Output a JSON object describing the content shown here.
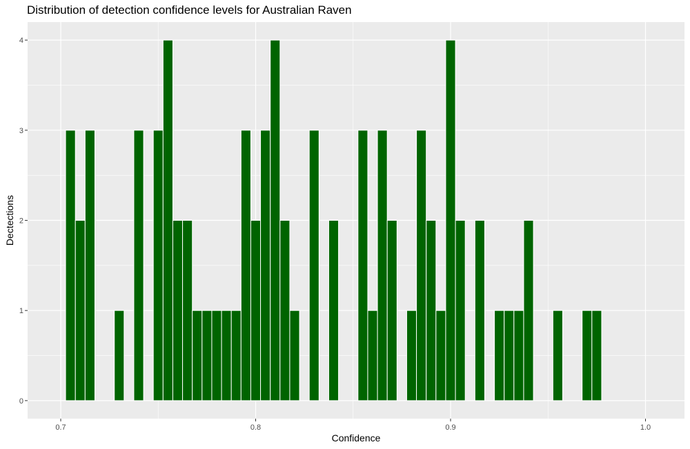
{
  "chart_data": {
    "type": "bar",
    "title": "Distribution of detection confidence levels for Australian Raven",
    "xlabel": "Confidence",
    "ylabel": "Dectections",
    "xlim": [
      0.683,
      1.02
    ],
    "ylim": [
      -0.2,
      4.2
    ],
    "x_ticks": [
      0.7,
      0.8,
      0.9,
      1.0
    ],
    "x_tick_labels": [
      "0.7",
      "0.8",
      "0.9",
      "1.0"
    ],
    "y_ticks": [
      0,
      1,
      2,
      3,
      4
    ],
    "y_tick_labels": [
      "0",
      "1",
      "2",
      "3",
      "4"
    ],
    "bin_width": 0.005,
    "bar_color": "#006400",
    "panel_color": "#ebebeb",
    "grid": true,
    "bins": [
      0.705,
      0.71,
      0.715,
      0.72,
      0.725,
      0.73,
      0.735,
      0.74,
      0.745,
      0.75,
      0.755,
      0.76,
      0.765,
      0.77,
      0.775,
      0.78,
      0.785,
      0.79,
      0.795,
      0.8,
      0.805,
      0.81,
      0.815,
      0.82,
      0.825,
      0.83,
      0.835,
      0.84,
      0.845,
      0.85,
      0.855,
      0.86,
      0.865,
      0.87,
      0.875,
      0.88,
      0.885,
      0.89,
      0.895,
      0.9,
      0.905,
      0.91,
      0.915,
      0.92,
      0.925,
      0.93,
      0.935,
      0.94,
      0.945,
      0.95,
      0.955,
      0.96,
      0.965,
      0.97,
      0.975
    ],
    "counts": [
      3,
      2,
      3,
      0,
      0,
      1,
      0,
      3,
      0,
      3,
      4,
      2,
      2,
      1,
      1,
      1,
      1,
      1,
      3,
      2,
      3,
      4,
      2,
      1,
      0,
      3,
      0,
      2,
      0,
      0,
      3,
      1,
      3,
      2,
      0,
      1,
      3,
      2,
      1,
      4,
      2,
      0,
      2,
      0,
      1,
      1,
      1,
      2,
      0,
      0,
      1,
      0,
      0,
      1,
      1
    ]
  }
}
